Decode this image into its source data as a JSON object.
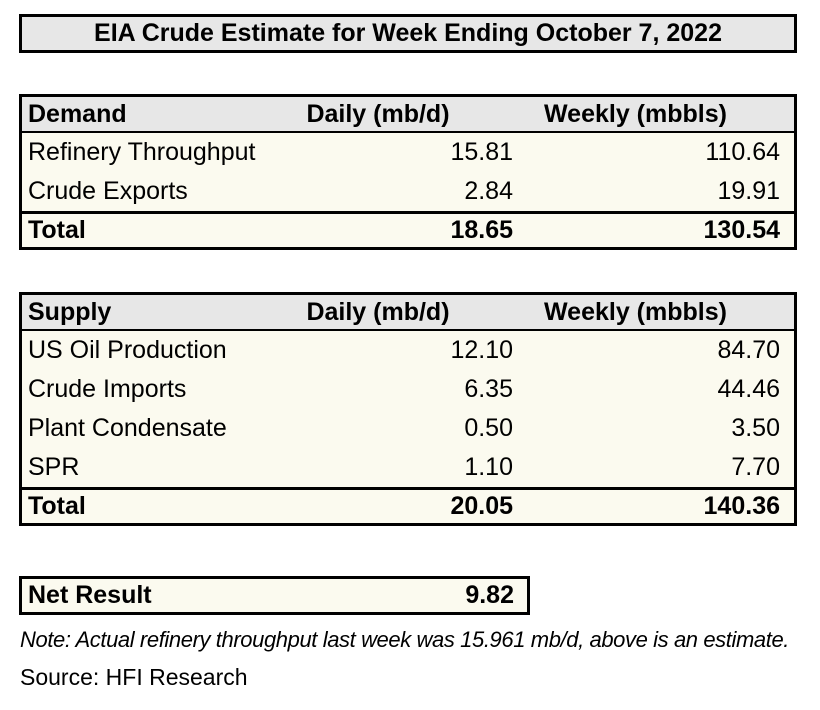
{
  "title": "EIA Crude Estimate for Week Ending October 7, 2022",
  "colors": {
    "header_bg": "#e7e7e7",
    "row_bg": "#fbfaef",
    "border": "#000000",
    "page_bg": "#ffffff"
  },
  "demand_table": {
    "headers": {
      "label": "Demand",
      "daily": "Daily (mb/d)",
      "weekly": "Weekly (mbbls)"
    },
    "rows": [
      {
        "label": "Refinery Throughput",
        "daily": "15.81",
        "weekly": "110.64"
      },
      {
        "label": "Crude Exports",
        "daily": "2.84",
        "weekly": "19.91"
      }
    ],
    "total": {
      "label": "Total",
      "daily": "18.65",
      "weekly": "130.54"
    }
  },
  "supply_table": {
    "headers": {
      "label": "Supply",
      "daily": "Daily (mb/d)",
      "weekly": "Weekly (mbbls)"
    },
    "rows": [
      {
        "label": "US Oil Production",
        "daily": "12.10",
        "weekly": "84.70"
      },
      {
        "label": "Crude Imports",
        "daily": "6.35",
        "weekly": "44.46"
      },
      {
        "label": "Plant Condensate",
        "daily": "0.50",
        "weekly": "3.50"
      },
      {
        "label": "SPR",
        "daily": "1.10",
        "weekly": "7.70"
      }
    ],
    "total": {
      "label": "Total",
      "daily": "20.05",
      "weekly": "140.36"
    }
  },
  "net_result": {
    "label": "Net Result",
    "value": "9.82"
  },
  "note": "Note: Actual refinery throughput last week was 15.961 mb/d, above is an estimate.",
  "source": "Source: HFI Research",
  "chart_data": [
    {
      "type": "table",
      "title": "Demand",
      "columns": [
        "Demand",
        "Daily (mb/d)",
        "Weekly (mbbls)"
      ],
      "rows": [
        [
          "Refinery Throughput",
          15.81,
          110.64
        ],
        [
          "Crude Exports",
          2.84,
          19.91
        ],
        [
          "Total",
          18.65,
          130.54
        ]
      ]
    },
    {
      "type": "table",
      "title": "Supply",
      "columns": [
        "Supply",
        "Daily (mb/d)",
        "Weekly (mbbls)"
      ],
      "rows": [
        [
          "US Oil Production",
          12.1,
          84.7
        ],
        [
          "Crude Imports",
          6.35,
          44.46
        ],
        [
          "Plant Condensate",
          0.5,
          3.5
        ],
        [
          "SPR",
          1.1,
          7.7
        ],
        [
          "Total",
          20.05,
          140.36
        ]
      ]
    },
    {
      "type": "table",
      "title": "Net Result",
      "columns": [
        "Net Result"
      ],
      "rows": [
        [
          "Net Result",
          9.82
        ]
      ]
    }
  ]
}
